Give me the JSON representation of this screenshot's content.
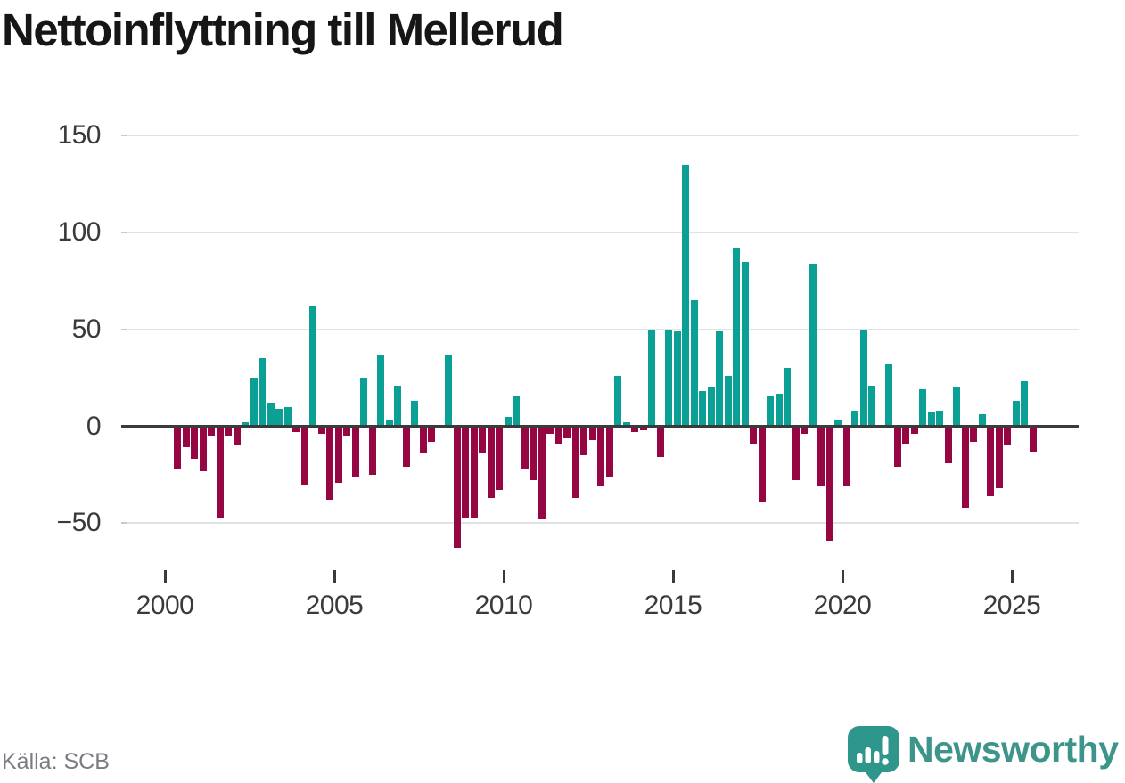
{
  "title": "Nettoinflyttning till Mellerud",
  "source": "Källa: SCB",
  "branding": {
    "wordmark": "Newsworthy",
    "badge_color": "#2f968c",
    "badge_icon": "bar-chart-exclamation-icon",
    "wordmark_color": "#3c948b"
  },
  "chart_data": {
    "type": "bar",
    "title": "Nettoinflyttning till Mellerud",
    "xlabel": "",
    "ylabel": "",
    "frequency": "quarterly",
    "x_start": "2000 Q2",
    "x_end": "2025 Q3",
    "x_tick_years": [
      2000,
      2005,
      2010,
      2015,
      2020,
      2025
    ],
    "y_tick_labels": [
      "150",
      "100",
      "50",
      "0",
      "−50"
    ],
    "y_tick_values": [
      150,
      100,
      50,
      0,
      -50
    ],
    "ylim": [
      -75,
      160
    ],
    "grid": true,
    "legend": false,
    "positive_color": "#0aa096",
    "negative_color": "#960643",
    "values": [
      -22,
      -11,
      -17,
      -23,
      -5,
      -47,
      -5,
      -10,
      2,
      25,
      35,
      12,
      9,
      10,
      -3,
      -30,
      62,
      -4,
      -38,
      -29,
      -5,
      -26,
      25,
      -25,
      37,
      3,
      21,
      -21,
      13,
      -14,
      -8,
      0,
      37,
      -63,
      -47,
      -47,
      -14,
      -37,
      -33,
      5,
      16,
      -22,
      -28,
      -48,
      -4,
      -9,
      -6,
      -37,
      -15,
      -7,
      -31,
      -26,
      26,
      2,
      -3,
      -2,
      50,
      -16,
      50,
      49,
      135,
      65,
      18,
      20,
      49,
      26,
      92,
      85,
      -9,
      -39,
      16,
      17,
      30,
      -28,
      -4,
      84,
      -31,
      -59,
      3,
      -31,
      8,
      50,
      21,
      0,
      32,
      -21,
      -9,
      -4,
      19,
      7,
      8,
      -19,
      20,
      -42,
      -8,
      6,
      -36,
      -32,
      -10,
      13,
      23,
      -13
    ]
  }
}
